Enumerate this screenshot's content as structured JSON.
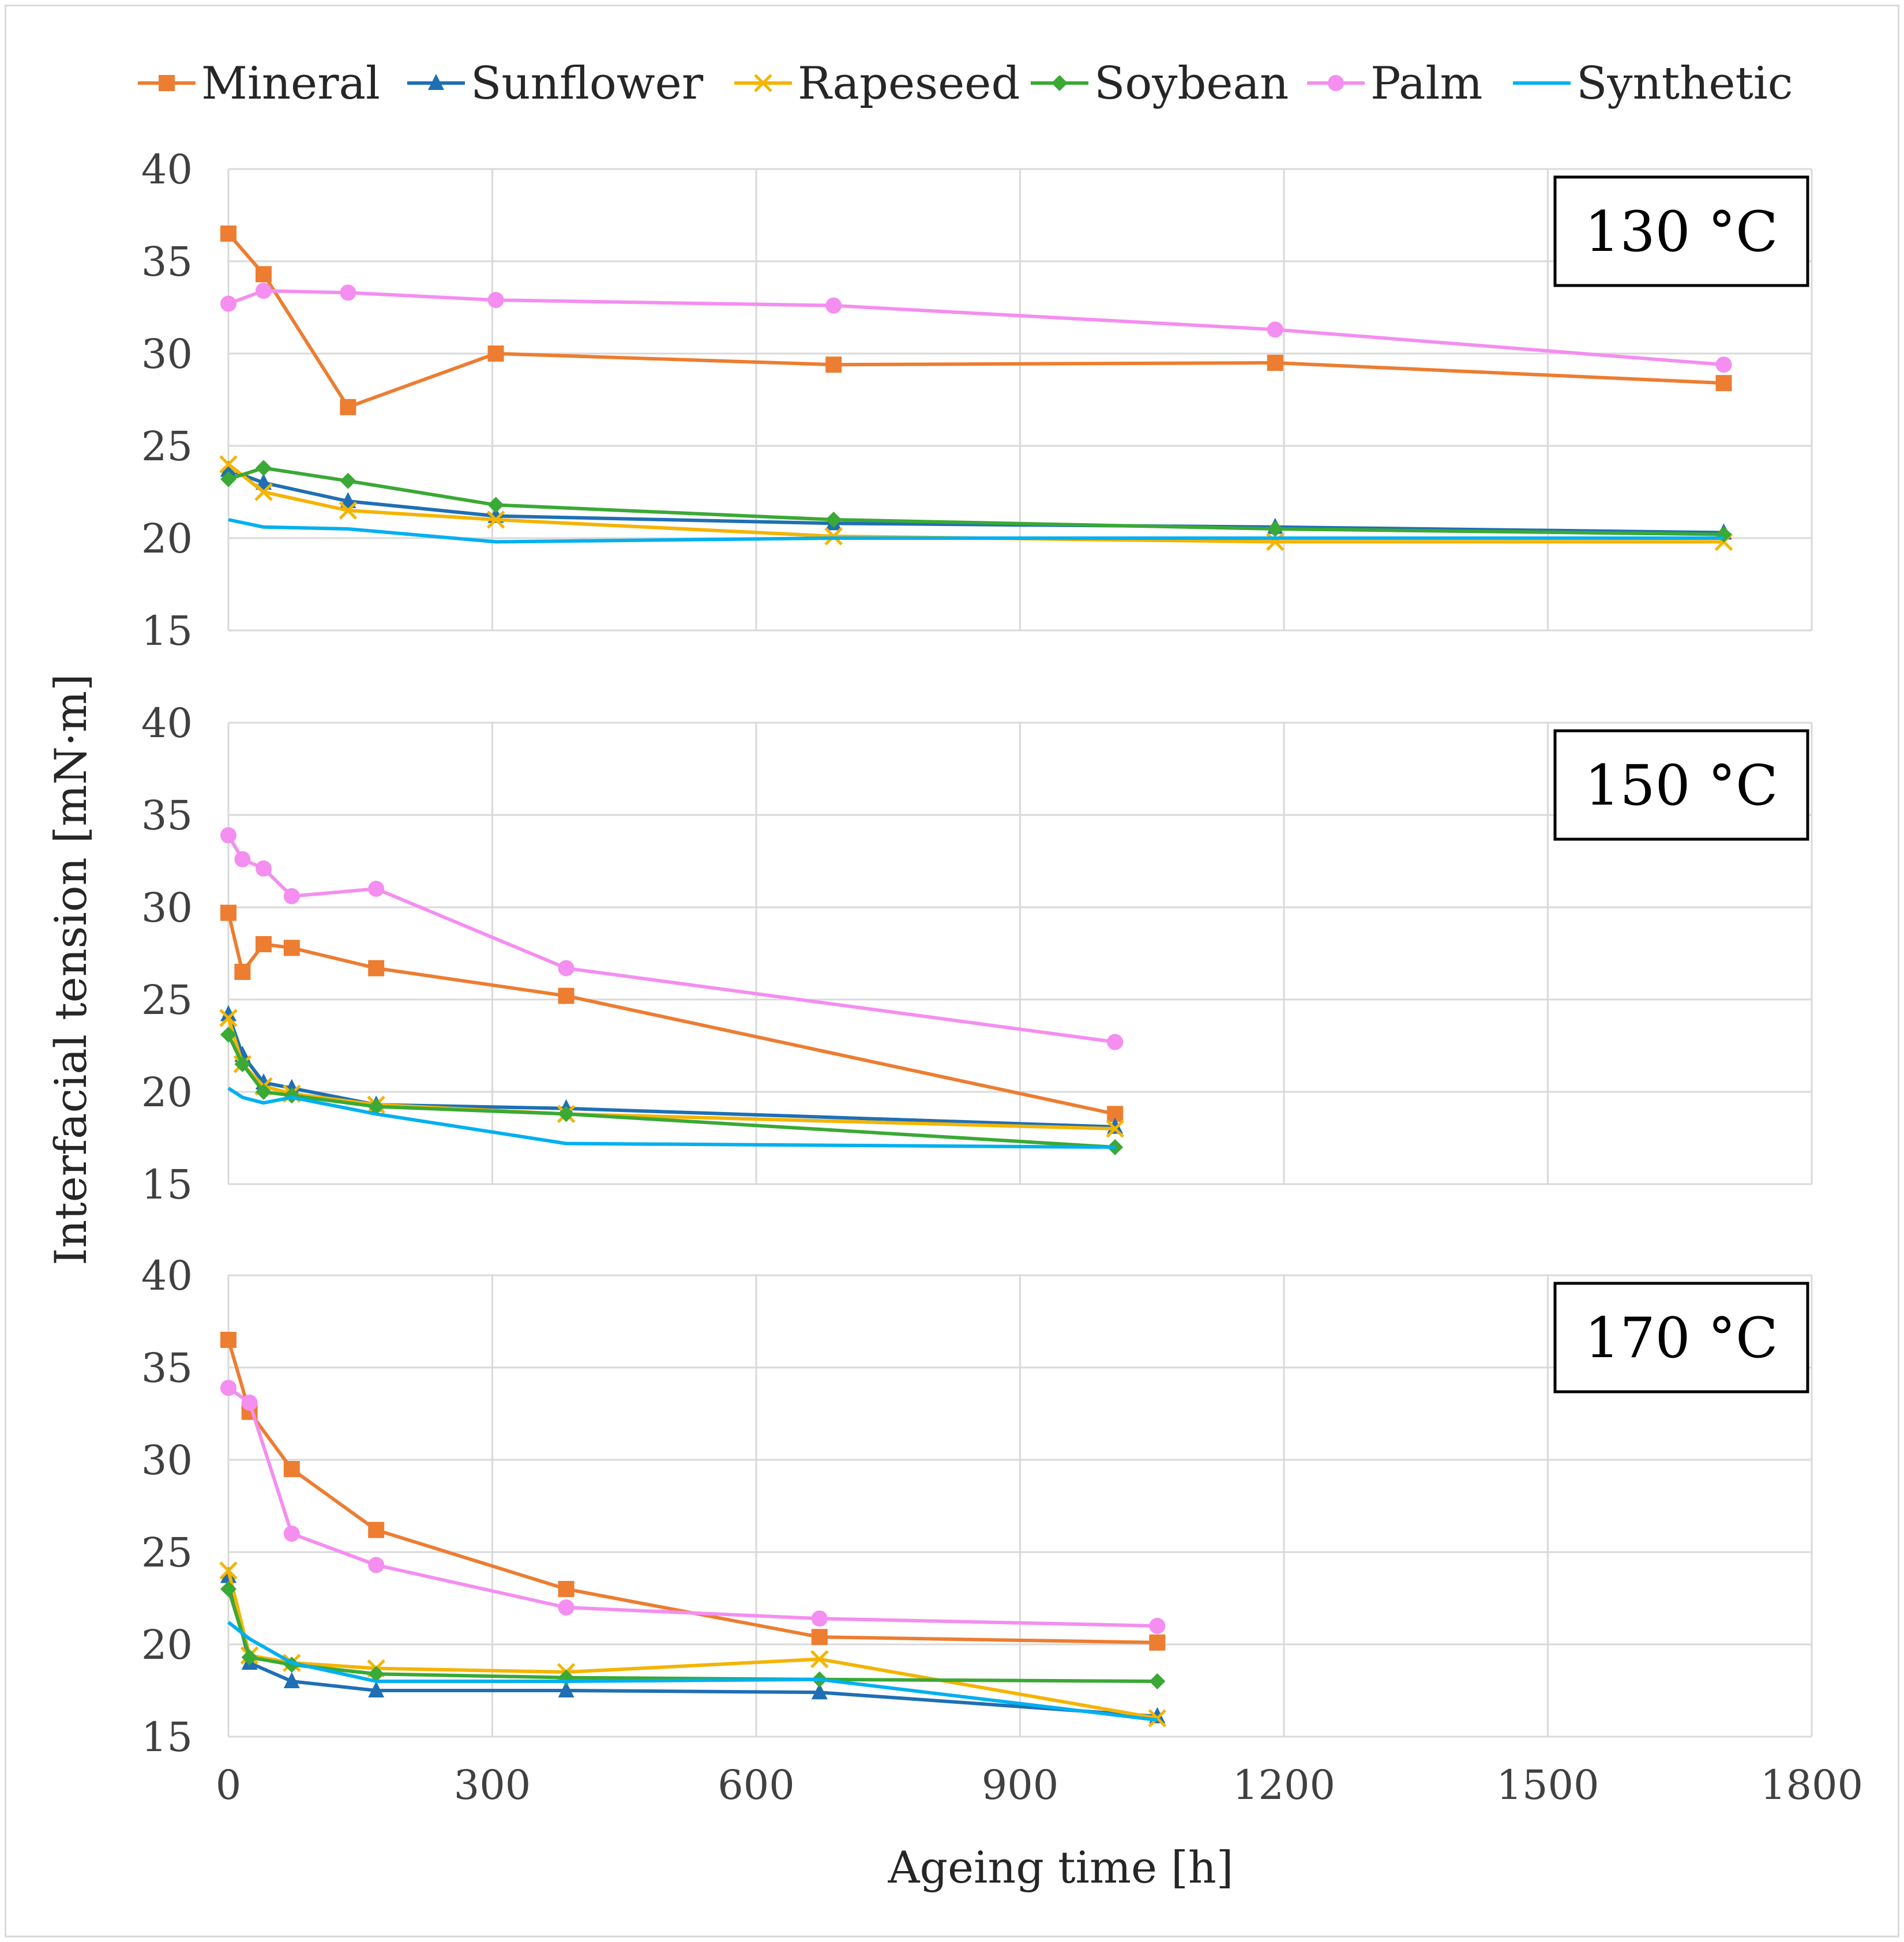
{
  "chart_data": {
    "type": "line",
    "layout": "three vertically stacked panels sharing the x axis",
    "xlabel": "Ageing time [h]",
    "ylabel": "Interfacial tension [mN·m]",
    "xlim": [
      0,
      1800
    ],
    "x_ticks": [
      "0",
      "300",
      "600",
      "900",
      "1200",
      "1500",
      "1800"
    ],
    "ylim": [
      15,
      40
    ],
    "y_ticks": [
      "15",
      "20",
      "25",
      "30",
      "35",
      "40"
    ],
    "grid": true,
    "legend_position": "top",
    "legend": [
      {
        "name": "Mineral",
        "color": "#ed7d31",
        "marker": "square"
      },
      {
        "name": "Sunflower",
        "color": "#1f6fb4",
        "marker": "triangle"
      },
      {
        "name": "Rapeseed",
        "color": "#f4b400",
        "marker": "x"
      },
      {
        "name": "Soybean",
        "color": "#3aa935",
        "marker": "diamond"
      },
      {
        "name": "Palm",
        "color": "#f48ef0",
        "marker": "circle"
      },
      {
        "name": "Synthetic",
        "color": "#00b0f0",
        "marker": "none"
      }
    ],
    "panels": [
      {
        "label": "130 °C",
        "series": [
          {
            "name": "Mineral",
            "x": [
              0,
              40,
              136,
              304,
              688,
              1190,
              1700
            ],
            "y": [
              36.5,
              34.3,
              27.1,
              30.0,
              29.4,
              29.5,
              28.4
            ]
          },
          {
            "name": "Sunflower",
            "x": [
              0,
              40,
              136,
              304,
              688,
              1190,
              1700
            ],
            "y": [
              23.7,
              23.0,
              22.0,
              21.2,
              20.8,
              20.6,
              20.3
            ]
          },
          {
            "name": "Rapeseed",
            "x": [
              0,
              40,
              136,
              304,
              688,
              1190,
              1700
            ],
            "y": [
              24.0,
              22.5,
              21.5,
              21.0,
              20.1,
              19.8,
              19.8
            ]
          },
          {
            "name": "Soybean",
            "x": [
              0,
              40,
              136,
              304,
              688,
              1190,
              1700
            ],
            "y": [
              23.2,
              23.8,
              23.1,
              21.8,
              21.0,
              20.5,
              20.2
            ]
          },
          {
            "name": "Palm",
            "x": [
              0,
              40,
              136,
              304,
              688,
              1190,
              1700
            ],
            "y": [
              32.7,
              33.4,
              33.3,
              32.9,
              32.6,
              31.3,
              29.4
            ]
          },
          {
            "name": "Synthetic",
            "x": [
              0,
              40,
              136,
              304,
              688,
              1190,
              1700
            ],
            "y": [
              21.0,
              20.6,
              20.5,
              19.8,
              20.0,
              20.0,
              20.0
            ]
          }
        ]
      },
      {
        "label": "150 °C",
        "series": [
          {
            "name": "Mineral",
            "x": [
              0,
              16,
              40,
              72,
              168,
              384,
              1008
            ],
            "y": [
              29.7,
              26.5,
              28.0,
              27.8,
              26.7,
              25.2,
              18.8
            ]
          },
          {
            "name": "Sunflower",
            "x": [
              0,
              16,
              40,
              72,
              168,
              384,
              1008
            ],
            "y": [
              24.2,
              22.0,
              20.5,
              20.2,
              19.3,
              19.1,
              18.1
            ]
          },
          {
            "name": "Rapeseed",
            "x": [
              0,
              16,
              40,
              72,
              168,
              384,
              1008
            ],
            "y": [
              24.0,
              21.5,
              20.3,
              19.9,
              19.3,
              18.8,
              18.0
            ]
          },
          {
            "name": "Soybean",
            "x": [
              0,
              16,
              40,
              72,
              168,
              384,
              1008
            ],
            "y": [
              23.1,
              21.5,
              20.0,
              19.8,
              19.2,
              18.8,
              17.0
            ]
          },
          {
            "name": "Palm",
            "x": [
              0,
              16,
              40,
              72,
              168,
              384,
              1008
            ],
            "y": [
              33.9,
              32.6,
              32.1,
              30.6,
              31.0,
              26.7,
              22.7
            ]
          },
          {
            "name": "Synthetic",
            "x": [
              0,
              16,
              40,
              72,
              168,
              384,
              1008
            ],
            "y": [
              20.2,
              19.7,
              19.4,
              19.7,
              18.8,
              17.2,
              17.0
            ]
          }
        ]
      },
      {
        "label": "170 °C",
        "series": [
          {
            "name": "Mineral",
            "x": [
              0,
              24,
              72,
              168,
              384,
              672,
              1056
            ],
            "y": [
              36.5,
              32.6,
              29.5,
              26.2,
              23.0,
              20.4,
              20.1
            ]
          },
          {
            "name": "Sunflower",
            "x": [
              0,
              24,
              72,
              168,
              384,
              672,
              1056
            ],
            "y": [
              23.7,
              19.0,
              18.0,
              17.5,
              17.5,
              17.4,
              16.1
            ]
          },
          {
            "name": "Rapeseed",
            "x": [
              0,
              24,
              72,
              168,
              384,
              672,
              1056
            ],
            "y": [
              24.0,
              19.4,
              19.0,
              18.7,
              18.5,
              19.2,
              16.0
            ]
          },
          {
            "name": "Soybean",
            "x": [
              0,
              24,
              72,
              168,
              384,
              672,
              1056
            ],
            "y": [
              23.0,
              19.3,
              18.9,
              18.4,
              18.2,
              18.1,
              18.0
            ]
          },
          {
            "name": "Palm",
            "x": [
              0,
              24,
              72,
              168,
              384,
              672,
              1056
            ],
            "y": [
              33.9,
              33.1,
              26.0,
              24.3,
              22.0,
              21.4,
              21.0
            ]
          },
          {
            "name": "Synthetic",
            "x": [
              0,
              24,
              72,
              168,
              384,
              672,
              1056
            ],
            "y": [
              21.2,
              20.3,
              19.0,
              18.0,
              18.0,
              18.1,
              15.9
            ]
          }
        ]
      }
    ]
  }
}
